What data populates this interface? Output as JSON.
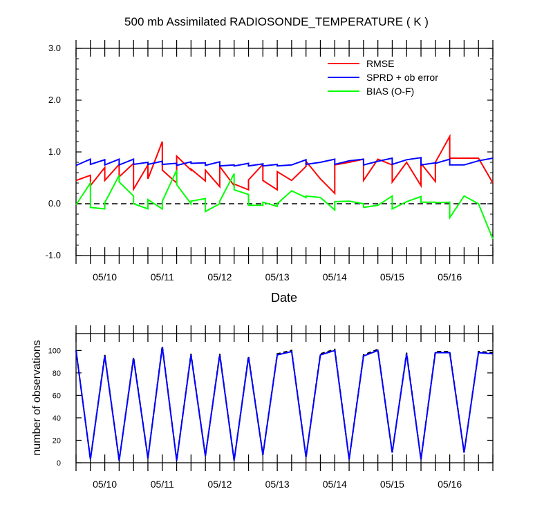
{
  "title": "500 mb Assimilated RADIOSONDE_TEMPERATURE ( K )",
  "colors": {
    "rmse": "#ff0000",
    "sprd": "#0000ff",
    "bias": "#00ff00",
    "zero": "#000000"
  },
  "chart_data": [
    {
      "type": "line",
      "xlabel": "Date",
      "ylabel": "",
      "ylim": [
        -1.0,
        3.0
      ],
      "xlim": [
        0,
        7.25
      ],
      "x_unit": "days from 05/09 12:00",
      "grid": false,
      "legend_position": "top-right",
      "yticks": [
        -1.0,
        0.0,
        1.0,
        2.0,
        3.0
      ],
      "ytick_labels": [
        "-1.0",
        "0.0",
        "1.0",
        "2.0",
        "3.0"
      ],
      "xticks": [
        0.5,
        1.5,
        2.5,
        3.5,
        4.5,
        5.5,
        6.5
      ],
      "xtick_labels": [
        "05/10",
        "05/11",
        "05/12",
        "05/13",
        "05/14",
        "05/15",
        "05/16"
      ],
      "reference_line": {
        "y": 0.0,
        "style": "dashed"
      },
      "series": [
        {
          "name": "RMSE",
          "color": "#ff0000",
          "x": [
            0,
            0.25,
            0.25,
            0.5,
            0.5,
            0.75,
            0.75,
            1,
            1,
            1.25,
            1.25,
            1.5,
            1.5,
            1.75,
            1.75,
            2,
            2,
            2.25,
            2.25,
            2.5,
            2.5,
            2.75,
            2.75,
            3,
            3,
            3.25,
            3.25,
            3.5,
            3.5,
            3.75,
            4,
            4,
            4.25,
            4.5,
            4.5,
            4.75,
            5,
            5,
            5.25,
            5.5,
            5.5,
            5.75,
            6,
            6,
            6.25,
            6.25,
            6.5,
            6.5,
            6.75,
            7,
            7.25
          ],
          "y": [
            0.45,
            0.55,
            0.35,
            0.7,
            0.45,
            0.76,
            0.52,
            0.78,
            0.28,
            0.75,
            0.48,
            1.2,
            0.65,
            0.4,
            0.92,
            0.65,
            0.67,
            0.44,
            0.65,
            0.33,
            0.72,
            0.35,
            0.38,
            0.27,
            0.46,
            0.76,
            0.45,
            0.27,
            0.62,
            0.45,
            0.72,
            0.82,
            0.48,
            0.2,
            0.75,
            0.8,
            0.86,
            0.45,
            0.86,
            0.75,
            0.42,
            0.8,
            0.35,
            0.78,
            0.43,
            0.8,
            1.3,
            0.88,
            0.88,
            0.88,
            0.4
          ]
        },
        {
          "name": "SPRD + ob error",
          "color": "#0000ff",
          "x": [
            0,
            0.25,
            0.25,
            0.5,
            0.5,
            0.75,
            0.75,
            1,
            1,
            1.25,
            1.25,
            1.5,
            1.5,
            1.75,
            1.75,
            2,
            2,
            2.25,
            2.25,
            2.5,
            2.5,
            2.75,
            2.75,
            3,
            3,
            3.25,
            3.25,
            3.5,
            3.5,
            3.75,
            4,
            4,
            4.25,
            4.5,
            4.5,
            4.75,
            5,
            5,
            5.25,
            5.5,
            5.5,
            5.75,
            6,
            6,
            6.25,
            6.25,
            6.5,
            6.5,
            6.75,
            7,
            7.25
          ],
          "y": [
            0.74,
            0.86,
            0.76,
            0.85,
            0.75,
            0.86,
            0.75,
            0.86,
            0.76,
            0.8,
            0.76,
            0.82,
            0.76,
            0.78,
            0.74,
            0.81,
            0.78,
            0.79,
            0.74,
            0.81,
            0.73,
            0.75,
            0.73,
            0.78,
            0.73,
            0.77,
            0.73,
            0.76,
            0.73,
            0.75,
            0.85,
            0.76,
            0.8,
            0.86,
            0.76,
            0.83,
            0.86,
            0.75,
            0.82,
            0.88,
            0.76,
            0.85,
            0.89,
            0.75,
            0.79,
            0.78,
            0.86,
            0.75,
            0.75,
            0.83,
            0.88
          ]
        },
        {
          "name": "BIAS (O-F)",
          "color": "#00ff00",
          "x": [
            0,
            0.25,
            0.25,
            0.5,
            0.5,
            0.75,
            0.75,
            1,
            1,
            1.25,
            1.25,
            1.5,
            1.5,
            1.75,
            1.75,
            2,
            2,
            2.25,
            2.25,
            2.5,
            2.5,
            2.75,
            2.75,
            3,
            3,
            3.25,
            3.25,
            3.5,
            3.5,
            3.75,
            4,
            4,
            4.25,
            4.5,
            4.5,
            4.75,
            5,
            5,
            5.25,
            5.5,
            5.5,
            5.75,
            6,
            6,
            6.25,
            6.25,
            6.5,
            6.5,
            6.75,
            7,
            7.25
          ],
          "y": [
            -0.02,
            0.4,
            -0.07,
            -0.1,
            0.02,
            0.55,
            0.42,
            0.15,
            0.0,
            -0.1,
            0.08,
            -0.1,
            0.05,
            0.65,
            0.37,
            0.0,
            0.05,
            0.1,
            -0.15,
            0.0,
            0.05,
            0.58,
            0.27,
            0.18,
            -0.03,
            -0.03,
            0.03,
            -0.05,
            0.0,
            0.25,
            0.12,
            0.15,
            0.12,
            -0.12,
            0.04,
            0.05,
            0.0,
            -0.07,
            -0.03,
            0.15,
            -0.1,
            0.04,
            0.14,
            0.03,
            0.03,
            0.02,
            0.03,
            -0.27,
            0.15,
            0.0,
            -0.68
          ]
        }
      ]
    },
    {
      "type": "line",
      "xlabel": "",
      "ylabel": "number of observations",
      "ylim": [
        0,
        115
      ],
      "xlim": [
        0,
        7.25
      ],
      "grid": false,
      "yticks": [
        0,
        20,
        40,
        60,
        80,
        100
      ],
      "ytick_labels": [
        "0",
        "20",
        "40",
        "60",
        "80",
        "100"
      ],
      "xticks": [
        0.5,
        1.5,
        2.5,
        3.5,
        4.5,
        5.5,
        6.5
      ],
      "xtick_labels": [
        "05/10",
        "05/11",
        "05/12",
        "05/13",
        "05/14",
        "05/15",
        "05/16"
      ],
      "series": [
        {
          "name": "",
          "style": "dashed",
          "color": "#000000",
          "x": [
            0,
            0.25,
            0.5,
            0.75,
            1,
            1.25,
            1.5,
            1.75,
            2,
            2.25,
            2.5,
            2.75,
            3,
            3.25,
            3.5,
            3.75,
            4,
            4.25,
            4.5,
            4.75,
            5,
            5.25,
            5.5,
            5.75,
            6,
            6.25,
            6.5,
            6.75,
            7,
            7.25
          ],
          "y": [
            100,
            3,
            96,
            2,
            94,
            4,
            104,
            2,
            97,
            6,
            97,
            2,
            95,
            7,
            97,
            100,
            5,
            97,
            101,
            3,
            96,
            101,
            9,
            98,
            3,
            99,
            99,
            9,
            99,
            98
          ]
        },
        {
          "name": "",
          "style": "solid",
          "color": "#0000ff",
          "x": [
            0,
            0.25,
            0.5,
            0.75,
            1,
            1.25,
            1.5,
            1.75,
            2,
            2.25,
            2.5,
            2.75,
            3,
            3.25,
            3.5,
            3.75,
            4,
            4.25,
            4.5,
            4.75,
            5,
            5.25,
            5.5,
            5.75,
            6,
            6.25,
            6.5,
            6.75,
            7,
            7.25
          ],
          "y": [
            100,
            3,
            95,
            2,
            93,
            4,
            103,
            2,
            96,
            6,
            96,
            2,
            94,
            7,
            96,
            99,
            5,
            96,
            100,
            3,
            95,
            100,
            9,
            97,
            3,
            98,
            98,
            9,
            98,
            97
          ]
        }
      ]
    }
  ]
}
